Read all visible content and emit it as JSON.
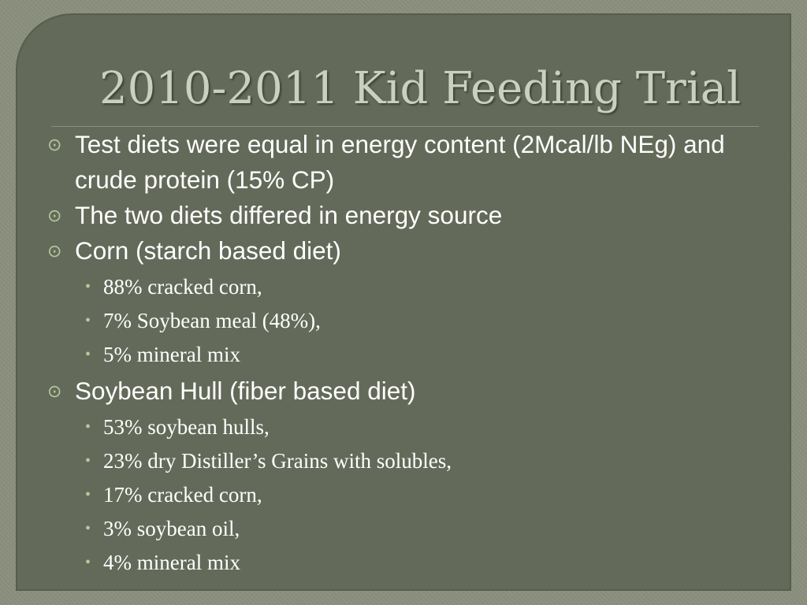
{
  "title": "2010-2011 Kid Feeding Trial",
  "bullets": [
    {
      "text": "Test diets were equal in energy content (2Mcal/lb NEg) and crude protein (15% CP)",
      "sub": []
    },
    {
      "text": "The two diets differed in energy source",
      "sub": []
    },
    {
      "text": "Corn (starch based diet)",
      "sub": [
        "88% cracked corn,",
        "7% Soybean meal (48%),",
        "5% mineral mix"
      ]
    },
    {
      "text": "Soybean Hull (fiber based diet)",
      "sub": [
        "53% soybean hulls,",
        "23% dry Distiller’s Grains with solubles,",
        "17% cracked corn,",
        "3% soybean oil,",
        "4% mineral mix"
      ]
    }
  ]
}
